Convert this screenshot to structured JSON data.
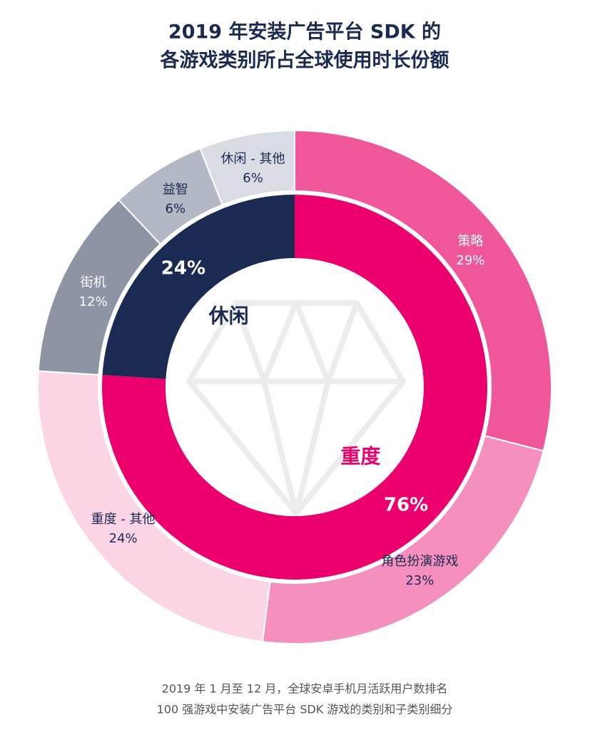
{
  "chart_data": {
    "type": "donut",
    "title": [
      "2019 年安装广告平台 SDK 的",
      "各游戏类别所占全球使用时长份额"
    ],
    "note": [
      "2019 年 1 月至 12 月，全球安卓手机月活跃用户数排名",
      "100 强游戏中安装广告平台 SDK 游戏的类别和子类别细分"
    ],
    "rings": [
      {
        "categories": [
          "重度",
          "休闲"
        ],
        "values": [
          76,
          24
        ],
        "value_labels": [
          "76%",
          "24%"
        ],
        "colors": [
          "#ec006d",
          "#1b2a52"
        ]
      },
      {
        "categories": [
          "策略",
          "角色扮演游戏",
          "重度 - 其他",
          "街机",
          "益智",
          "休闲 - 其他"
        ],
        "values": [
          29,
          23,
          24,
          12,
          6,
          6
        ],
        "value_labels": [
          "29%",
          "23%",
          "24%",
          "12%",
          "6%",
          "6%"
        ],
        "colors": [
          "#f0579b",
          "#f58fbd",
          "#fbd4e6",
          "#8d95a5",
          "#b3b9c4",
          "#d9dce2"
        ]
      }
    ]
  }
}
